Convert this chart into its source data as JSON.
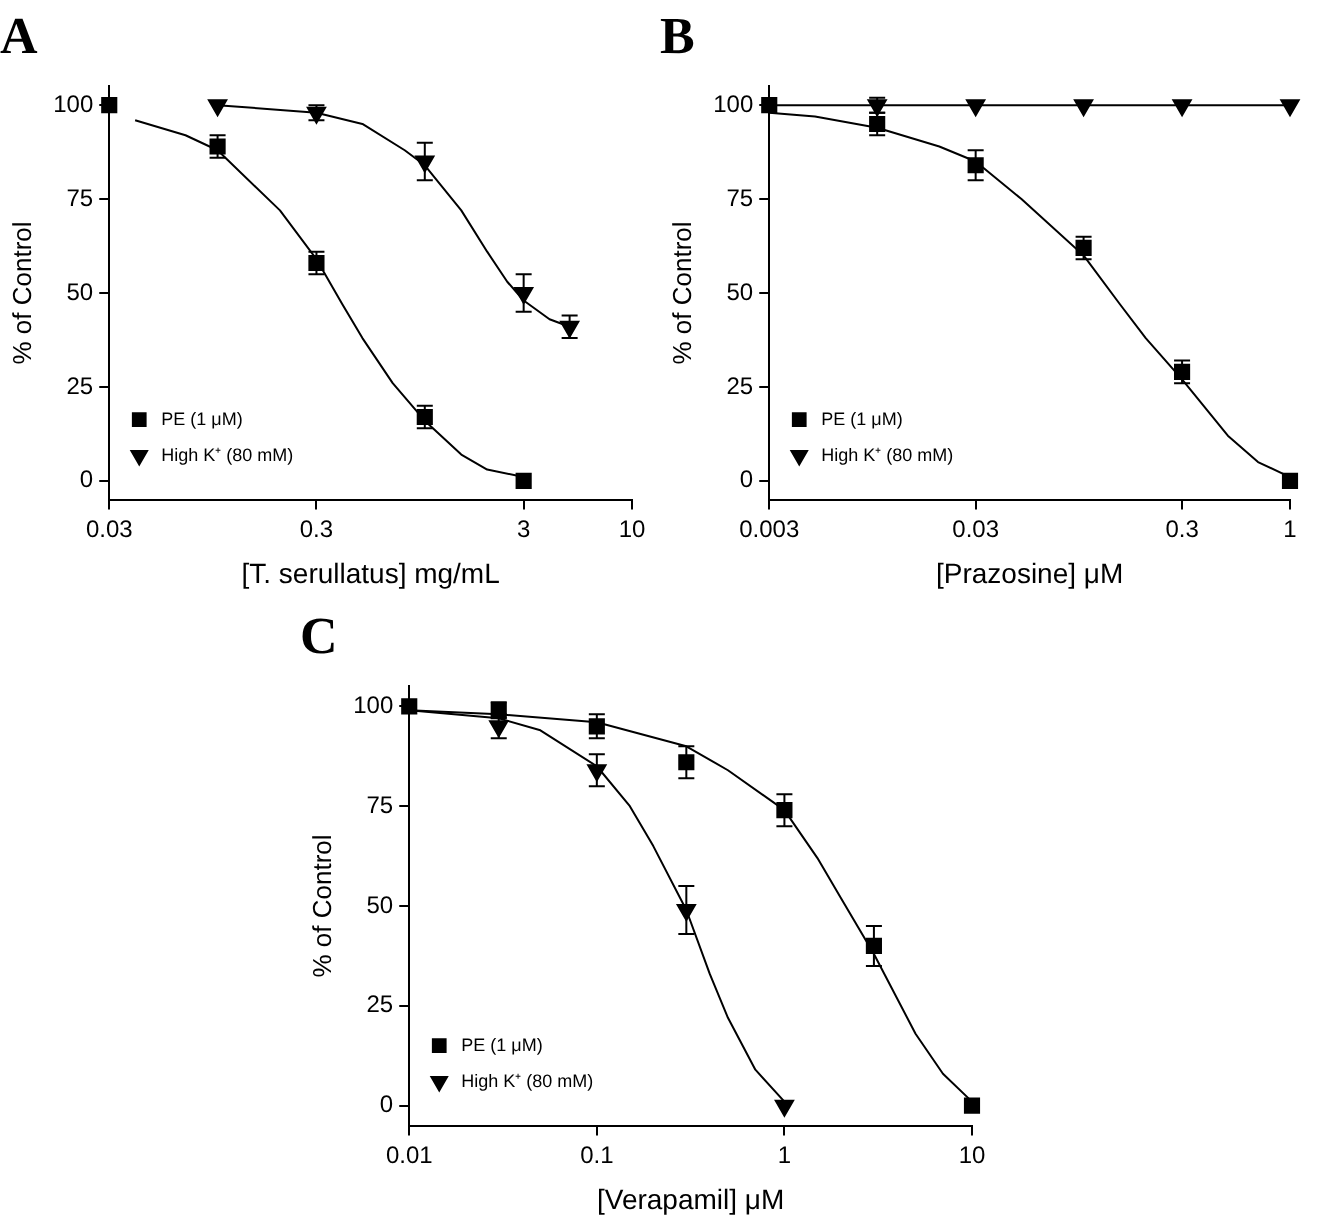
{
  "chart_data": [
    {
      "type": "scatter",
      "title": "A",
      "xlabel": "[T. serullatus] mg/mL",
      "ylabel": "% of Control",
      "log": "x",
      "xlim": [
        0.03,
        10
      ],
      "xticks": [
        0.03,
        0.3,
        3,
        10
      ],
      "ylim": [
        -5,
        105
      ],
      "yticks": [
        0,
        25,
        50,
        75,
        100
      ],
      "legend": "bottom left",
      "series": [
        {
          "name": "PE (1 μM)",
          "color": "#000000",
          "marker": "square",
          "x": [
            0.03,
            0.1,
            0.3,
            1,
            3
          ],
          "values": [
            100,
            89,
            58,
            17,
            0
          ],
          "errors": [
            null,
            3,
            3,
            3,
            null
          ]
        },
        {
          "name": "High K⁺ (80 mM)",
          "color": "#000000",
          "marker": "triangle",
          "x": [
            0.1,
            0.3,
            1,
            3,
            5
          ],
          "values": [
            100,
            98,
            85,
            50,
            41
          ],
          "errors": [
            null,
            2,
            5,
            5,
            3
          ]
        },
        {
          "type": "line",
          "color": "#000000",
          "marker": "none",
          "x": [
            0.04,
            0.07,
            0.1,
            0.2,
            0.3,
            0.4,
            0.5,
            0.7,
            1,
            1.5,
            2,
            3
          ],
          "values": [
            96,
            92,
            88,
            72,
            59,
            47,
            38,
            26,
            16,
            7,
            3,
            1
          ]
        },
        {
          "type": "line",
          "color": "#000000",
          "marker": "none",
          "x": [
            0.1,
            0.3,
            0.5,
            0.8,
            1,
            1.5,
            2,
            2.5,
            3,
            4,
            5
          ],
          "values": [
            100,
            98,
            95,
            88,
            84,
            72,
            61,
            53,
            48,
            43,
            41
          ]
        }
      ]
    },
    {
      "type": "scatter",
      "title": "B",
      "xlabel": "[Prazosine] μM",
      "ylabel": "% of Control",
      "log": "x",
      "xlim": [
        0.003,
        1
      ],
      "xticks": [
        0.003,
        0.03,
        0.3,
        1
      ],
      "ylim": [
        -5,
        105
      ],
      "yticks": [
        0,
        25,
        50,
        75,
        100
      ],
      "legend": "bottom left",
      "series": [
        {
          "name": "PE (1 μM)",
          "color": "#000000",
          "marker": "square",
          "x": [
            0.003,
            0.01,
            0.03,
            0.1,
            0.3,
            1
          ],
          "values": [
            100,
            95,
            84,
            62,
            29,
            0
          ],
          "errors": [
            null,
            3,
            4,
            3,
            3,
            null
          ]
        },
        {
          "name": "High K⁺ (80 mM)",
          "color": "#000000",
          "marker": "triangle",
          "x": [
            0.01,
            0.03,
            0.1,
            0.3,
            1
          ],
          "values": [
            100,
            100,
            100,
            100,
            100
          ],
          "errors": [
            2,
            null,
            null,
            null,
            null
          ]
        },
        {
          "type": "line",
          "color": "#000000",
          "marker": "none",
          "x": [
            0.003,
            0.005,
            0.01,
            0.02,
            0.03,
            0.05,
            0.1,
            0.15,
            0.2,
            0.3,
            0.5,
            0.7,
            1
          ],
          "values": [
            98,
            97,
            94,
            89,
            85,
            75,
            60,
            47,
            38,
            27,
            12,
            5,
            1
          ]
        },
        {
          "type": "line",
          "color": "#000000",
          "marker": "none",
          "x": [
            0.003,
            1
          ],
          "values": [
            100,
            100
          ]
        }
      ]
    },
    {
      "type": "scatter",
      "title": "C",
      "xlabel": "[Verapamil] μM",
      "ylabel": "% of Control",
      "log": "x",
      "xlim": [
        0.01,
        10
      ],
      "xticks": [
        0.01,
        0.1,
        1,
        10
      ],
      "ylim": [
        -5,
        105
      ],
      "yticks": [
        0,
        25,
        50,
        75,
        100
      ],
      "legend": "bottom left",
      "series": [
        {
          "name": "PE (1 μM)",
          "color": "#000000",
          "marker": "square",
          "x": [
            0.01,
            0.03,
            0.1,
            0.3,
            1,
            3,
            10
          ],
          "values": [
            100,
            99,
            95,
            86,
            74,
            40,
            0
          ],
          "errors": [
            null,
            2,
            3,
            4,
            4,
            5,
            null
          ]
        },
        {
          "name": "High K⁺ (80 mM)",
          "color": "#000000",
          "marker": "triangle",
          "x": [
            0.03,
            0.1,
            0.3,
            1
          ],
          "values": [
            95,
            84,
            49,
            0
          ],
          "errors": [
            3,
            4,
            6,
            null
          ]
        },
        {
          "type": "line",
          "color": "#000000",
          "marker": "none",
          "x": [
            0.01,
            0.03,
            0.1,
            0.3,
            0.5,
            1,
            1.5,
            2,
            3,
            5,
            7,
            10
          ],
          "values": [
            99,
            98,
            96,
            90,
            84,
            74,
            62,
            52,
            38,
            18,
            8,
            1
          ]
        },
        {
          "type": "line",
          "color": "#000000",
          "marker": "none",
          "x": [
            0.01,
            0.03,
            0.05,
            0.1,
            0.15,
            0.2,
            0.3,
            0.4,
            0.5,
            0.7,
            1
          ],
          "values": [
            99,
            97,
            94,
            85,
            75,
            65,
            49,
            33,
            22,
            9,
            1
          ]
        }
      ]
    }
  ]
}
